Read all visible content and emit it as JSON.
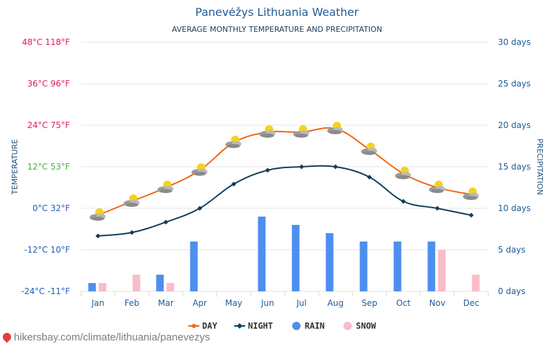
{
  "chart_data": {
    "type": "line",
    "title": "Panevėžys Lithuania Weather",
    "subtitle": "AVERAGE MONTHLY TEMPERATURE AND PRECIPITATION",
    "ylabel_left": "TEMPERATURE",
    "ylabel_right": "PRECIPITATION",
    "categories": [
      "Jan",
      "Feb",
      "Mar",
      "Apr",
      "May",
      "Jun",
      "Jul",
      "Aug",
      "Sep",
      "Oct",
      "Nov",
      "Dec"
    ],
    "y_left_ticks": [
      {
        "value": 48,
        "label": "48°C 118°F",
        "color": "#e0195a"
      },
      {
        "value": 36,
        "label": "36°C 96°F",
        "color": "#e0195a"
      },
      {
        "value": 24,
        "label": "24°C 75°F",
        "color": "#e0195a"
      },
      {
        "value": 12,
        "label": "12°C 53°F",
        "color": "#3cb43c"
      },
      {
        "value": 0,
        "label": "0°C 32°F",
        "color": "#1f5ab4"
      },
      {
        "value": -12,
        "label": "-12°C 10°F",
        "color": "#1f5ab4"
      },
      {
        "value": -24,
        "label": "-24°C -11°F",
        "color": "#1f5ab4"
      }
    ],
    "ylim_left": [
      -24,
      48
    ],
    "y_right_ticks": [
      {
        "value": 30,
        "label": "30 days"
      },
      {
        "value": 25,
        "label": "25 days"
      },
      {
        "value": 20,
        "label": "20 days"
      },
      {
        "value": 15,
        "label": "15 days"
      },
      {
        "value": 10,
        "label": "10 days"
      },
      {
        "value": 5,
        "label": "5 days"
      },
      {
        "value": 0,
        "label": "0 days"
      }
    ],
    "ylim_right": [
      0,
      30
    ],
    "series": [
      {
        "name": "DAY",
        "kind": "line",
        "axis": "left",
        "color": "#f06414",
        "values": [
          -2,
          2,
          6,
          11,
          19,
          22,
          22,
          23,
          17,
          10,
          6,
          4
        ]
      },
      {
        "name": "NIGHT",
        "kind": "line",
        "axis": "left",
        "color": "#0e3d5c",
        "values": [
          -8,
          -7,
          -4,
          0,
          7,
          11,
          12,
          12,
          9,
          2,
          0,
          -2
        ]
      },
      {
        "name": "RAIN",
        "kind": "bar",
        "axis": "right",
        "color": "#4d8ff0",
        "values": [
          1,
          0,
          2,
          6,
          0,
          9,
          8,
          7,
          6,
          6,
          6,
          0
        ]
      },
      {
        "name": "SNOW",
        "kind": "bar",
        "axis": "right",
        "color": "#f9bcc8",
        "values": [
          1,
          2,
          1,
          0,
          0,
          0,
          0,
          0,
          0,
          0,
          5,
          2
        ]
      }
    ],
    "weather_icon": "partly-cloudy-icon",
    "legend_position": "bottom-center",
    "grid": true
  },
  "footer": {
    "source": "hikersbay.com/climate/lithuania/panevezys",
    "pin_icon": "location-pin-icon"
  }
}
